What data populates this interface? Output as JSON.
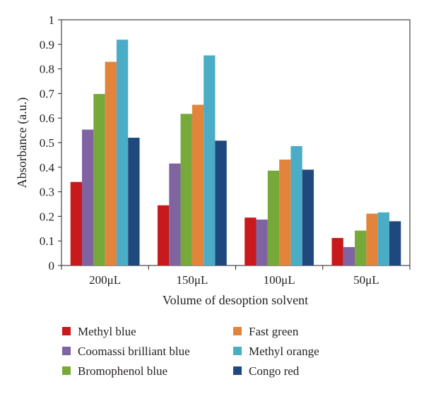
{
  "chart_data": {
    "type": "bar",
    "title": "",
    "xlabel": "Volume of desoption solvent",
    "ylabel": "Absorbance (a.u.)",
    "ylim": [
      0,
      1
    ],
    "yticks": [
      "0",
      "0.1",
      "0.2",
      "0.3",
      "0.4",
      "0.5",
      "0.6",
      "0.7",
      "0.8",
      "0.9",
      "1"
    ],
    "categories": [
      {
        "num": "200",
        "unit": "μL"
      },
      {
        "num": "150",
        "unit": "μL"
      },
      {
        "num": "100",
        "unit": "μL"
      },
      {
        "num": "50",
        "unit": "μL"
      }
    ],
    "series": [
      {
        "name": "Methyl blue",
        "color": "#c8191c",
        "values": [
          0.34,
          0.245,
          0.195,
          0.112
        ]
      },
      {
        "name": "Coomassi brilliant blue",
        "color": "#8064a2",
        "values": [
          0.553,
          0.415,
          0.187,
          0.075
        ]
      },
      {
        "name": "Bromophenol blue",
        "color": "#77a83a",
        "values": [
          0.698,
          0.617,
          0.386,
          0.142
        ]
      },
      {
        "name": "Fast green",
        "color": "#e3843c",
        "values": [
          0.829,
          0.654,
          0.431,
          0.211
        ]
      },
      {
        "name": "Methyl orange",
        "color": "#4bacc6",
        "values": [
          0.919,
          0.855,
          0.486,
          0.216
        ]
      },
      {
        "name": "Congo red",
        "color": "#1f497d",
        "values": [
          0.52,
          0.508,
          0.39,
          0.18
        ]
      }
    ],
    "grid": false,
    "legend_position": "bottom"
  }
}
